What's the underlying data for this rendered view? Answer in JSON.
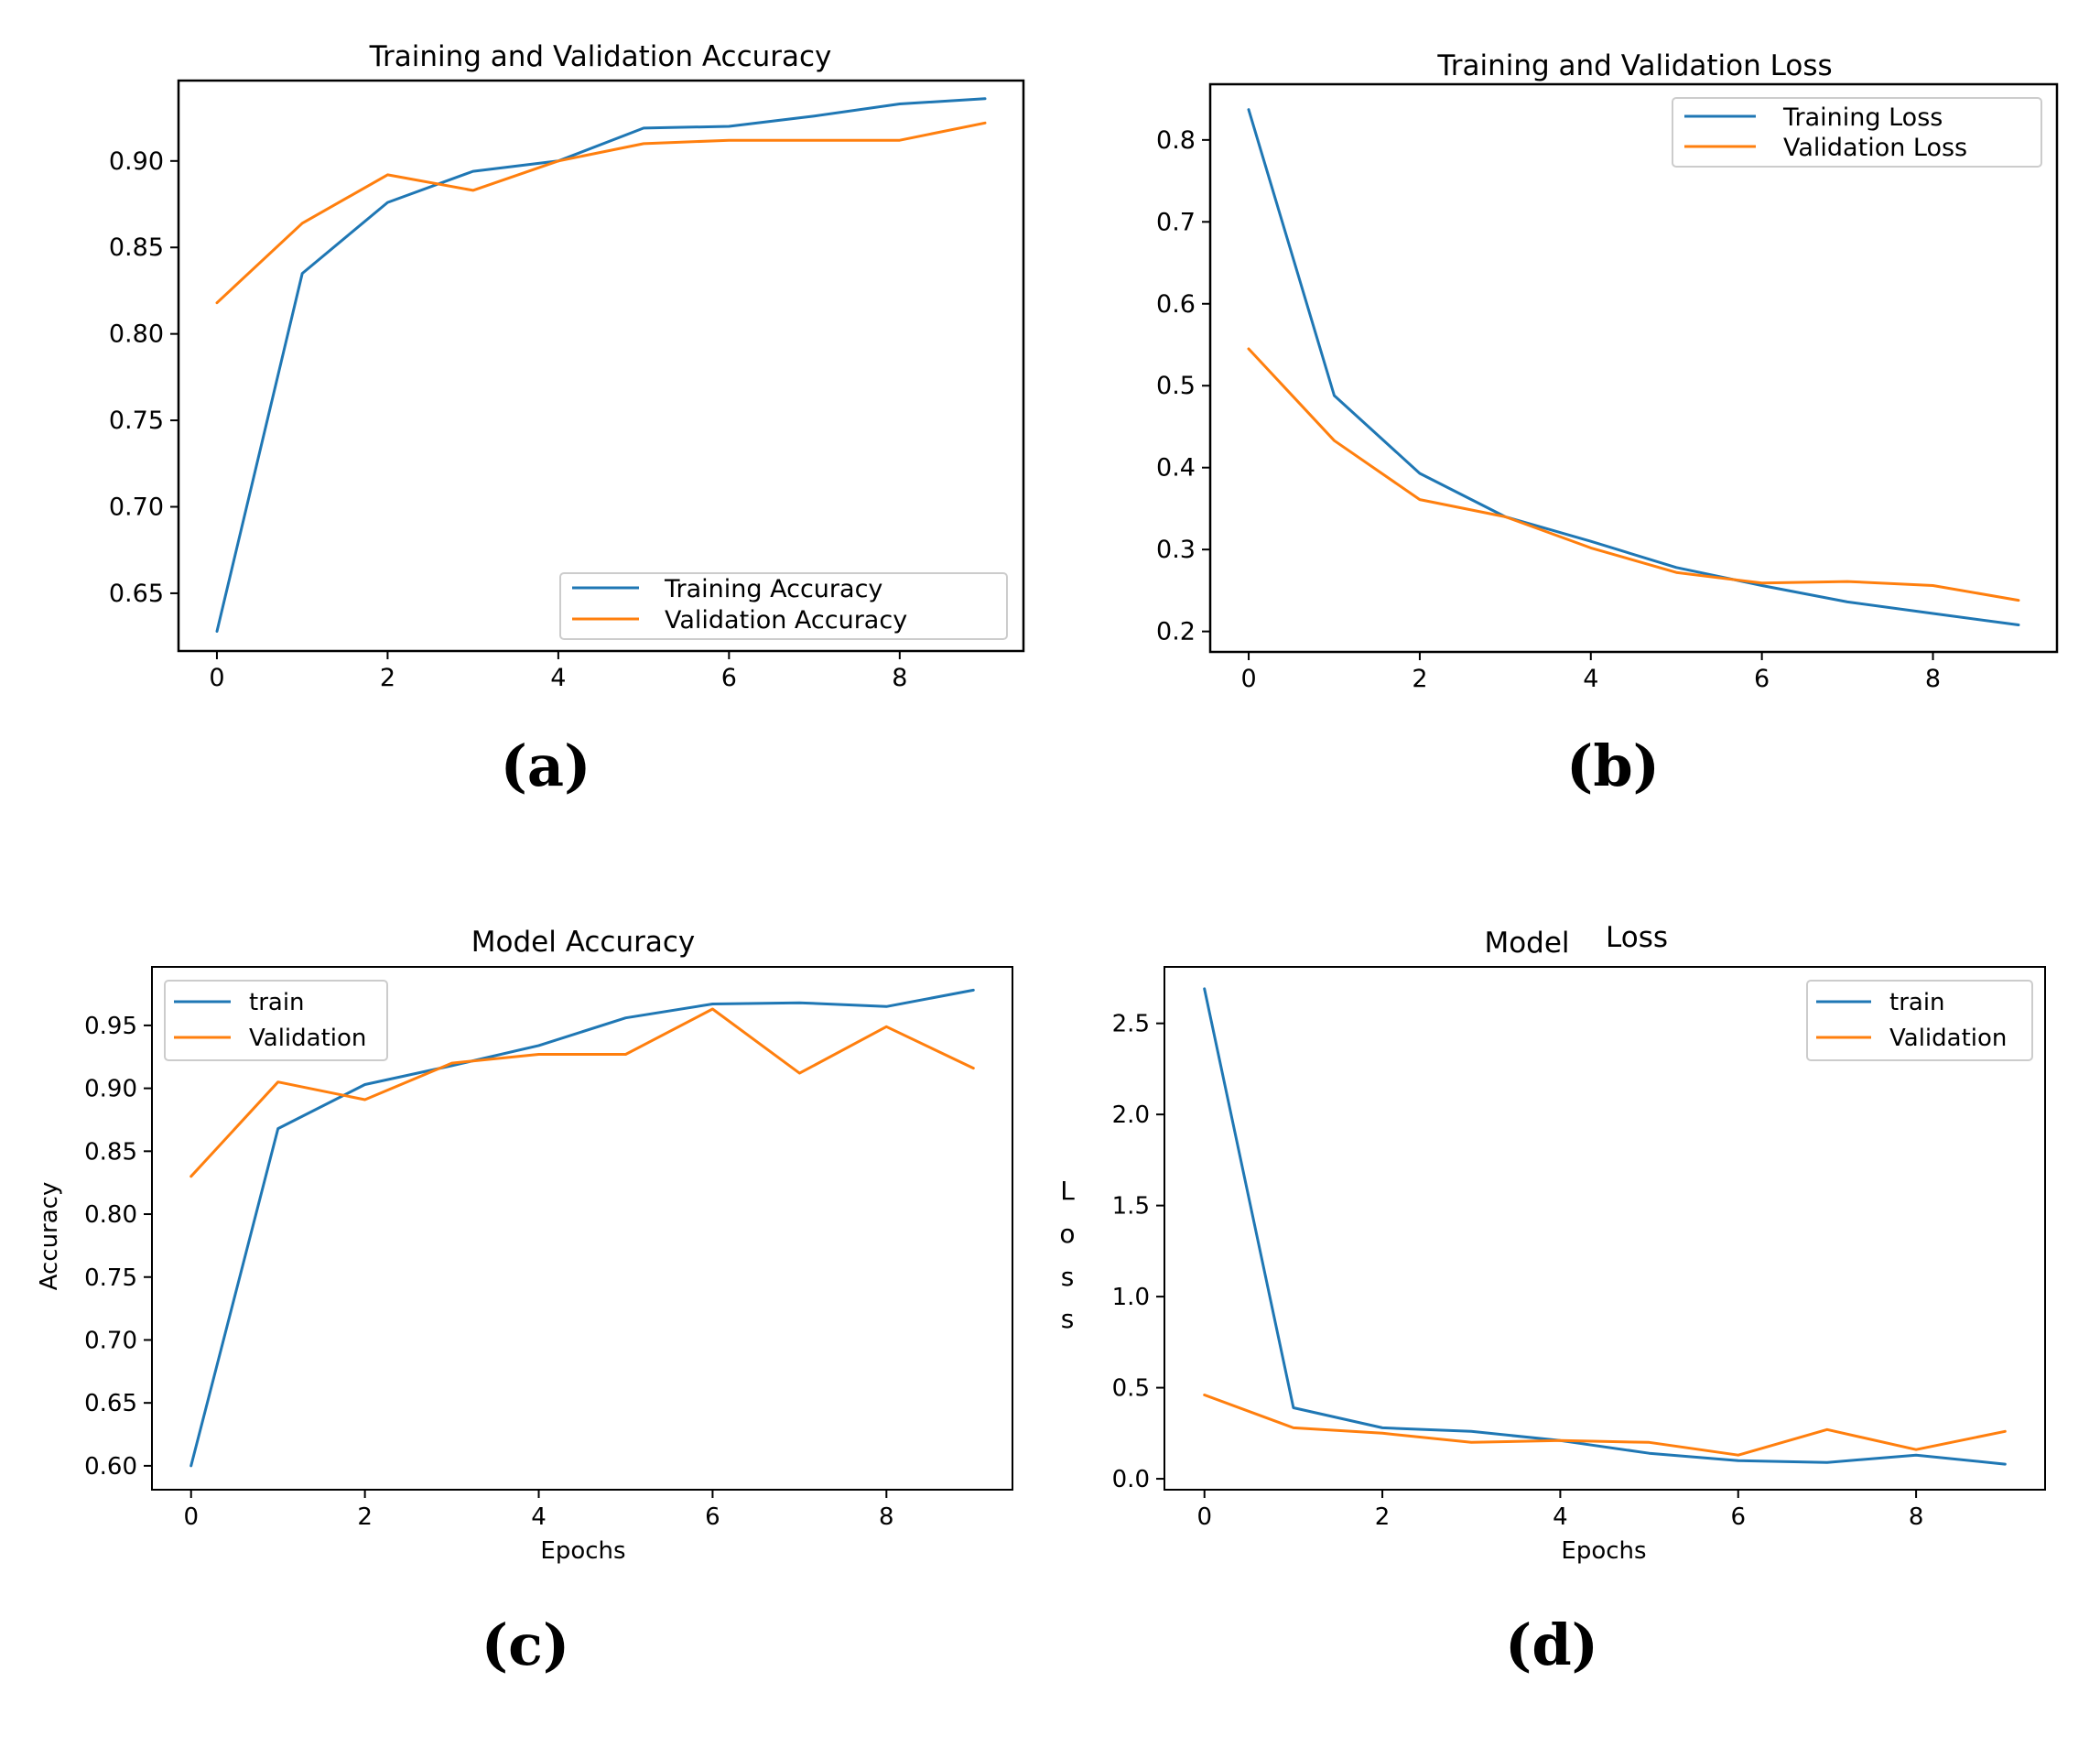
{
  "colors": {
    "series1": "#1f77b4",
    "series2": "#ff7f0e",
    "axis": "#000000"
  },
  "chart_data": [
    {
      "panel": "(a)",
      "type": "line",
      "title": "Training and Validation Accuracy",
      "xlabel": "",
      "ylabel": "",
      "xlim": [
        -0.45,
        9.45
      ],
      "ylim": [
        0.6166,
        0.9465
      ],
      "xticks": [
        0,
        2,
        4,
        6,
        8
      ],
      "xtick_labels": [
        "0",
        "2",
        "4",
        "6",
        "8"
      ],
      "yticks": [
        0.65,
        0.7,
        0.75,
        0.8,
        0.85,
        0.9
      ],
      "ytick_labels": [
        "0.65",
        "0.70",
        "0.75",
        "0.80",
        "0.85",
        "0.90"
      ],
      "legend_position": "lower-right",
      "x": [
        0,
        1,
        2,
        3,
        4,
        5,
        6,
        7,
        8,
        9
      ],
      "series": [
        {
          "name": "Training Accuracy",
          "color": "#1f77b4",
          "values": [
            0.628,
            0.835,
            0.876,
            0.894,
            0.9,
            0.919,
            0.92,
            0.926,
            0.933,
            0.936
          ]
        },
        {
          "name": "Validation Accuracy",
          "color": "#ff7f0e",
          "values": [
            0.818,
            0.864,
            0.892,
            0.883,
            0.9,
            0.91,
            0.912,
            0.912,
            0.912,
            0.922
          ]
        }
      ]
    },
    {
      "panel": "(b)",
      "type": "line",
      "title": "Training and Validation Loss",
      "xlabel": "",
      "ylabel": "",
      "xlim": [
        -0.45,
        9.45
      ],
      "ylim": [
        0.175,
        0.868
      ],
      "xticks": [
        0,
        2,
        4,
        6,
        8
      ],
      "xtick_labels": [
        "0",
        "2",
        "4",
        "6",
        "8"
      ],
      "yticks": [
        0.2,
        0.3,
        0.4,
        0.5,
        0.6,
        0.7,
        0.8
      ],
      "ytick_labels": [
        "0.2",
        "0.3",
        "0.4",
        "0.5",
        "0.6",
        "0.7",
        "0.8"
      ],
      "legend_position": "upper-right",
      "x": [
        0,
        1,
        2,
        3,
        4,
        5,
        6,
        7,
        8,
        9
      ],
      "series": [
        {
          "name": "Training Loss",
          "color": "#1f77b4",
          "values": [
            0.837,
            0.488,
            0.393,
            0.34,
            0.31,
            0.278,
            0.256,
            0.236,
            0.222,
            0.208
          ]
        },
        {
          "name": "Validation Loss",
          "color": "#ff7f0e",
          "values": [
            0.545,
            0.433,
            0.361,
            0.34,
            0.302,
            0.272,
            0.259,
            0.261,
            0.256,
            0.238
          ]
        }
      ]
    },
    {
      "panel": "(c)",
      "type": "line",
      "title": "Model Accuracy",
      "xlabel": "Epochs",
      "ylabel": "Accuracy",
      "xlim": [
        -0.45,
        9.45
      ],
      "ylim": [
        0.581,
        0.9965
      ],
      "xticks": [
        0,
        2,
        4,
        6,
        8
      ],
      "xtick_labels": [
        "0",
        "2",
        "4",
        "6",
        "8"
      ],
      "yticks": [
        0.6,
        0.65,
        0.7,
        0.75,
        0.8,
        0.85,
        0.9,
        0.95
      ],
      "ytick_labels": [
        "0.60",
        "0.65",
        "0.70",
        "0.75",
        "0.80",
        "0.85",
        "0.90",
        "0.95"
      ],
      "legend_position": "upper-left",
      "x": [
        0,
        1,
        2,
        3,
        4,
        5,
        6,
        7,
        8,
        9
      ],
      "series": [
        {
          "name": "train",
          "color": "#1f77b4",
          "values": [
            0.6,
            0.868,
            0.903,
            0.918,
            0.934,
            0.956,
            0.967,
            0.968,
            0.965,
            0.978
          ]
        },
        {
          "name": "Validation",
          "color": "#ff7f0e",
          "values": [
            0.83,
            0.905,
            0.891,
            0.92,
            0.927,
            0.927,
            0.963,
            0.912,
            0.949,
            0.916
          ]
        }
      ]
    },
    {
      "panel": "(d)",
      "type": "line",
      "title_parts": [
        "Model",
        "Loss"
      ],
      "xlabel": "Epochs",
      "ylabel_chars": [
        "L",
        "o",
        "s",
        "s"
      ],
      "xlim": [
        -0.45,
        9.45
      ],
      "ylim": [
        -0.06,
        2.81
      ],
      "xticks": [
        0,
        2,
        4,
        6,
        8
      ],
      "xtick_labels": [
        "0",
        "2",
        "4",
        "6",
        "8"
      ],
      "yticks": [
        0.0,
        0.5,
        1.0,
        1.5,
        2.0,
        2.5
      ],
      "ytick_labels": [
        "0.0",
        "0.5",
        "1.0",
        "1.5",
        "2.0",
        "2.5"
      ],
      "legend_position": "upper-right",
      "x": [
        0,
        1,
        2,
        3,
        4,
        5,
        6,
        7,
        8,
        9
      ],
      "series": [
        {
          "name": "train",
          "color": "#1f77b4",
          "values": [
            2.69,
            0.39,
            0.28,
            0.26,
            0.21,
            0.14,
            0.1,
            0.09,
            0.13,
            0.08
          ]
        },
        {
          "name": "Validation",
          "color": "#ff7f0e",
          "values": [
            0.46,
            0.28,
            0.25,
            0.2,
            0.21,
            0.2,
            0.13,
            0.27,
            0.16,
            0.26
          ]
        }
      ]
    }
  ]
}
